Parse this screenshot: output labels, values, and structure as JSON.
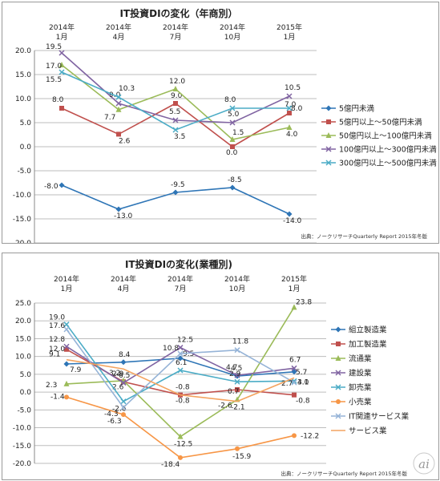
{
  "chart_data": [
    {
      "type": "line",
      "title": "IT投資DIの変化（年商別）",
      "categories": [
        "2014年\n1月",
        "2014年\n4月",
        "2014年\n7月",
        "2014年\n10月",
        "2015年\n1月"
      ],
      "ylim": [
        -20,
        20
      ],
      "yticks": [
        "20.0",
        "15.0",
        "10.0",
        "5.0",
        "0.0",
        "-5.0",
        "-10.0",
        "-15.0",
        "-20.0"
      ],
      "grid": true,
      "legend_position": "right",
      "source": "出典：ノークリサーチQuarterly Report 2015年冬版",
      "series": [
        {
          "name": "5億円未満",
          "color": "#2e75b6",
          "marker": "diamond",
          "values": [
            -8.0,
            -13.0,
            -9.5,
            -8.5,
            -14.0
          ],
          "labels": [
            "-8.0",
            "-13.0",
            "-9.5",
            "-8.5",
            "-14.0"
          ]
        },
        {
          "name": "5億円以上～50億円未満",
          "color": "#c0504d",
          "marker": "square",
          "values": [
            8.0,
            2.6,
            9.0,
            0.0,
            7.0
          ],
          "labels": [
            "8.0",
            "2.6",
            "9.0",
            "0.0",
            "7.0"
          ]
        },
        {
          "name": "50億円以上～100億円未満",
          "color": "#9bbb59",
          "marker": "triangle",
          "values": [
            17.0,
            7.7,
            12.0,
            1.5,
            4.0
          ],
          "labels": [
            "17.0",
            "7.7",
            "12.0",
            "1.5",
            "4.0"
          ]
        },
        {
          "name": "100億円以上～300億円未満",
          "color": "#8064a2",
          "marker": "x",
          "values": [
            19.5,
            9.0,
            5.5,
            5.0,
            10.5
          ],
          "labels": [
            "19.5",
            "9.0",
            "5.5",
            "5.0",
            "10.5"
          ]
        },
        {
          "name": "300億円以上～500億円未満",
          "color": "#4bacc6",
          "marker": "x",
          "values": [
            15.5,
            10.3,
            3.5,
            8.0,
            8.0
          ],
          "labels": [
            "15.5",
            "10.3",
            "3.5",
            "8.0",
            "8.0"
          ]
        }
      ]
    },
    {
      "type": "line",
      "title": "IT投資DIの変化(業種別)",
      "categories": [
        "2014年\n1月",
        "2014年\n4月",
        "2014年\n7月",
        "2014年\n10月",
        "2015年\n1月"
      ],
      "ylim": [
        -20,
        25
      ],
      "yticks": [
        "25.0",
        "20.0",
        "15.0",
        "10.0",
        "5.0",
        "0.0",
        "-5.0",
        "-10.0",
        "-15.0",
        "-20.0"
      ],
      "grid": true,
      "legend_position": "right",
      "source": "出典：ノークリサーチQuarterly Report 2015年冬版",
      "series": [
        {
          "name": "組立製造業",
          "color": "#2e75b6",
          "marker": "diamond",
          "values": [
            7.9,
            8.4,
            9.5,
            4.5,
            5.7
          ],
          "labels": [
            "7.9",
            "8.4",
            "9.5",
            "4.5",
            "5.7"
          ]
        },
        {
          "name": "加工製造業",
          "color": "#c0504d",
          "marker": "square",
          "values": [
            12.0,
            2.9,
            -0.8,
            0.7,
            -0.8
          ],
          "labels": [
            "12.0",
            "2.9",
            "-0.8",
            "0.7",
            "-0.8"
          ]
        },
        {
          "name": "流通業",
          "color": "#9bbb59",
          "marker": "triangle",
          "values": [
            2.3,
            3.2,
            -12.5,
            -2.1,
            23.8
          ],
          "labels": [
            "2.3",
            "3.2",
            "-12.5",
            "-2.1",
            "23.8"
          ]
        },
        {
          "name": "建設業",
          "color": "#8064a2",
          "marker": "x",
          "values": [
            12.8,
            2.6,
            12.5,
            4.7,
            6.7
          ],
          "labels": [
            "12.8",
            "2.6",
            "12.5",
            "4.7",
            "6.7"
          ]
        },
        {
          "name": "卸売業",
          "color": "#4bacc6",
          "marker": "x",
          "values": [
            19.0,
            -2.6,
            6.1,
            2.9,
            3.1
          ],
          "labels": [
            "19.0",
            "-2.6",
            "6.1",
            "2.9",
            "3.1"
          ]
        },
        {
          "name": "小売業",
          "color": "#f79646",
          "marker": "circle",
          "values": [
            -1.4,
            -6.3,
            -18.4,
            -15.9,
            -12.2
          ],
          "labels": [
            "-1.4",
            "-6.3",
            "-18.4",
            "-15.9",
            "-12.2"
          ]
        },
        {
          "name": "IT関連サービス業",
          "color": "#95b3d7",
          "marker": "x",
          "values": [
            17.6,
            -4.3,
            10.8,
            11.8,
            2.7
          ],
          "labels": [
            "17.6",
            "-4.3",
            "10.8",
            "11.8",
            "2.7"
          ]
        },
        {
          "name": "サービス業",
          "color": "#f4a460",
          "marker": "none",
          "values": [
            9.1,
            6.5,
            -0.8,
            -2.6,
            4.0
          ],
          "labels": [
            "9.1",
            "6.5",
            "-0.8",
            "-2.6",
            "4.0"
          ]
        }
      ]
    }
  ],
  "logo": {
    "text": "ai"
  }
}
